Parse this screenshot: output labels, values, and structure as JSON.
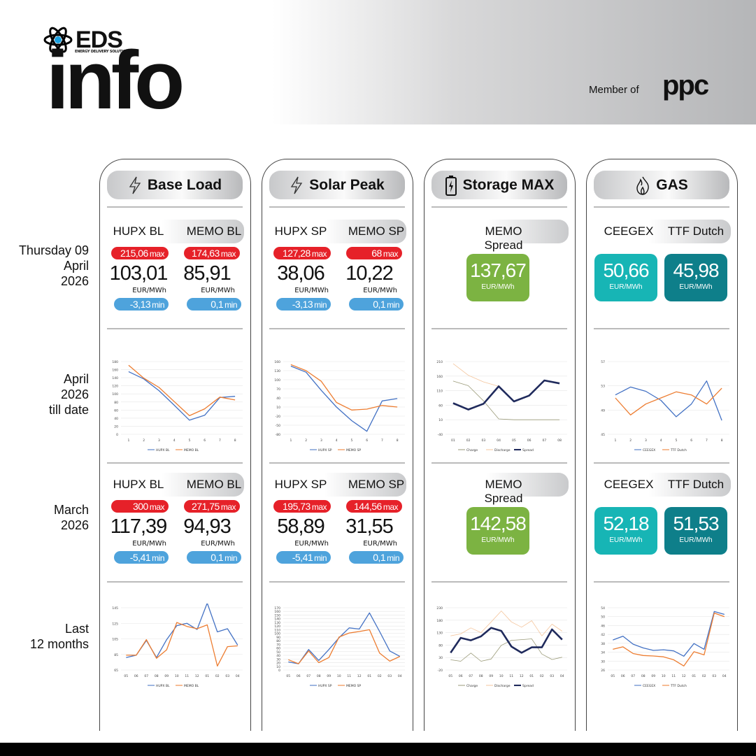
{
  "header": {
    "brand": "EDS",
    "brand_sub": "ENERGY DELIVERY SOLUTIONS",
    "title": "info",
    "member_of": "Member of",
    "parent_brand": "ppc"
  },
  "row_labels": [
    "Thursday 09\nApril\n2026",
    "April\n2026\ntill date",
    "March\n2026",
    "Last\n12 months"
  ],
  "colors": {
    "red": "#e62129",
    "blue": "#4ea3dc",
    "green": "#7cb342",
    "teal": "#17b5b5",
    "dark_teal": "#0e7f8a",
    "hupx": "#4472c4",
    "memo": "#ed7d31",
    "spread": "#1f2a5c"
  },
  "cards": [
    {
      "title": "Base Load",
      "icon": "lightning-icon",
      "type": "pair",
      "blocks": [
        {
          "labels": [
            "HUPX BL",
            "MEMO BL"
          ],
          "max": [
            "215,06",
            "174,63"
          ],
          "values": [
            "103,01",
            "85,91"
          ],
          "unit": "EUR/MWh",
          "min": [
            "-3,13",
            "0,1"
          ]
        },
        {
          "labels": [
            "HUPX BL",
            "MEMO BL"
          ],
          "max": [
            "300",
            "271,75"
          ],
          "values": [
            "117,39",
            "94,93"
          ],
          "unit": "EUR/MWh",
          "min": [
            "-5,41",
            "0,1"
          ]
        }
      ],
      "max_label": "max",
      "min_label": "min"
    },
    {
      "title": "Solar Peak",
      "icon": "lightning-icon",
      "type": "pair",
      "blocks": [
        {
          "labels": [
            "HUPX SP",
            "MEMO SP"
          ],
          "max": [
            "127,28",
            "68"
          ],
          "values": [
            "38,06",
            "10,22"
          ],
          "unit": "EUR/MWh",
          "min": [
            "-3,13",
            "0,1"
          ]
        },
        {
          "labels": [
            "HUPX SP",
            "MEMO SP"
          ],
          "max": [
            "195,73",
            "144,56"
          ],
          "values": [
            "58,89",
            "31,55"
          ],
          "unit": "EUR/MWh",
          "min": [
            "-5,41",
            "0,1"
          ]
        }
      ],
      "max_label": "max",
      "min_label": "min"
    },
    {
      "title": "Storage MAX",
      "icon": "battery-icon",
      "type": "single",
      "blocks": [
        {
          "label": "MEMO Spread",
          "values": [
            "137,67"
          ],
          "unit": "EUR/MWh"
        },
        {
          "label": "MEMO Spread",
          "values": [
            "142,58"
          ],
          "unit": "EUR/MWh"
        }
      ]
    },
    {
      "title": "GAS",
      "icon": "flame-icon",
      "type": "gas",
      "blocks": [
        {
          "labels": [
            "CEEGEX",
            "TTF Dutch"
          ],
          "values": [
            "50,66",
            "45,98"
          ],
          "unit": "EUR/MWh"
        },
        {
          "labels": [
            "CEEGEX",
            "TTF Dutch"
          ],
          "values": [
            "52,18",
            "51,53"
          ],
          "unit": "EUR/MWh"
        }
      ]
    }
  ],
  "chart_data": [
    {
      "card": "Base Load",
      "period": "April 2026 till date",
      "type": "line",
      "categories": [
        "1",
        "2",
        "3",
        "4",
        "5",
        "6",
        "7",
        "8"
      ],
      "ylim": [
        0,
        180
      ],
      "yticks": [
        0,
        20,
        40,
        60,
        80,
        100,
        120,
        140,
        160,
        180
      ],
      "legend": "bottom",
      "series": [
        {
          "name": "HUPX BL",
          "color": "#4472c4",
          "width": 1.3,
          "values": [
            155,
            137,
            108,
            72,
            35,
            47,
            91,
            94
          ]
        },
        {
          "name": "MEMO BL",
          "color": "#ed7d31",
          "width": 1.3,
          "values": [
            171,
            139,
            116,
            81,
            46,
            63,
            92,
            85
          ]
        }
      ]
    },
    {
      "card": "Solar Peak",
      "period": "April 2026 till date",
      "type": "line",
      "categories": [
        "1",
        "2",
        "3",
        "4",
        "5",
        "6",
        "7",
        "8"
      ],
      "ylim": [
        -80,
        160
      ],
      "yticks": [
        -80,
        -50,
        -20,
        10,
        40,
        70,
        100,
        130,
        160
      ],
      "legend": "bottom",
      "series": [
        {
          "name": "HUPX SP",
          "color": "#4472c4",
          "width": 1.3,
          "values": [
            145,
            125,
            65,
            10,
            -35,
            -70,
            30,
            38
          ]
        },
        {
          "name": "MEMO SP",
          "color": "#ed7d31",
          "width": 1.3,
          "values": [
            150,
            130,
            95,
            25,
            0,
            3,
            15,
            10
          ]
        }
      ]
    },
    {
      "card": "Storage MAX",
      "period": "April 2026 till date",
      "type": "line",
      "categories": [
        "01",
        "02",
        "03",
        "04",
        "05",
        "06",
        "07",
        "08"
      ],
      "ylim": [
        -40,
        210
      ],
      "yticks": [
        -40,
        10,
        60,
        110,
        160,
        210
      ],
      "legend": "bottom",
      "series": [
        {
          "name": "Charge",
          "color": "#9a9a78",
          "width": 0.8,
          "values": [
            143,
            127,
            75,
            13,
            10,
            10,
            10,
            10
          ]
        },
        {
          "name": "Discharge",
          "color": "#f4c59c",
          "width": 0.8,
          "values": [
            203,
            163,
            140,
            125,
            null,
            null,
            null,
            null
          ]
        },
        {
          "name": "Spread",
          "color": "#1f2a5c",
          "width": 2.6,
          "values": [
            67,
            45,
            65,
            125,
            73,
            93,
            145,
            135
          ]
        }
      ]
    },
    {
      "card": "GAS",
      "period": "April 2026 till date",
      "type": "line",
      "categories": [
        "1",
        "2",
        "3",
        "4",
        "5",
        "6",
        "7",
        "8"
      ],
      "ylim": [
        45,
        57
      ],
      "yticks": [
        45,
        49,
        53,
        57
      ],
      "legend": "bottom",
      "series": [
        {
          "name": "CEEGEX",
          "color": "#4472c4",
          "width": 1.3,
          "values": [
            51.5,
            52.8,
            52.1,
            50.6,
            47.9,
            50.0,
            53.8,
            47.3
          ]
        },
        {
          "name": "TTF Dutch",
          "color": "#ed7d31",
          "width": 1.3,
          "values": [
            51.0,
            48.2,
            50.0,
            51.0,
            52.0,
            51.5,
            50.0,
            52.6
          ]
        }
      ]
    },
    {
      "card": "Base Load",
      "period": "Last 12 months",
      "type": "line",
      "categories": [
        "05",
        "06",
        "07",
        "08",
        "09",
        "10",
        "11",
        "12",
        "01",
        "02",
        "03",
        "04"
      ],
      "ylim": [
        65,
        145
      ],
      "yticks": [
        65,
        85,
        105,
        125,
        145
      ],
      "legend": "bottom",
      "series": [
        {
          "name": "HUPX BL",
          "color": "#4472c4",
          "width": 1.3,
          "values": [
            81,
            84,
            103,
            81,
            104,
            122,
            125,
            117,
            151,
            114,
            118,
            97
          ]
        },
        {
          "name": "MEMO BL",
          "color": "#ed7d31",
          "width": 1.3,
          "values": [
            84,
            84,
            104,
            80,
            91,
            126,
            121,
            118,
            123,
            70,
            95,
            96
          ]
        }
      ]
    },
    {
      "card": "Solar Peak",
      "period": "Last 12 months",
      "type": "line",
      "categories": [
        "05",
        "06",
        "07",
        "08",
        "09",
        "10",
        "11",
        "12",
        "01",
        "02",
        "03",
        "04"
      ],
      "ylim": [
        0,
        170
      ],
      "yticks": [
        0,
        10,
        20,
        30,
        40,
        50,
        60,
        70,
        80,
        90,
        100,
        110,
        120,
        130,
        140,
        150,
        160,
        170
      ],
      "legend": "bottom",
      "series": [
        {
          "name": "HUPX SP",
          "color": "#4472c4",
          "width": 1.3,
          "values": [
            22,
            17,
            56,
            26,
            56,
            88,
            115,
            112,
            156,
            105,
            52,
            37
          ]
        },
        {
          "name": "MEMO SP",
          "color": "#ed7d31",
          "width": 1.3,
          "values": [
            28,
            17,
            52,
            20,
            34,
            90,
            101,
            105,
            110,
            46,
            24,
            37
          ]
        }
      ]
    },
    {
      "card": "Storage MAX",
      "period": "Last 12 months",
      "type": "line",
      "categories": [
        "05",
        "06",
        "07",
        "08",
        "09",
        "10",
        "11",
        "12",
        "01",
        "02",
        "03",
        "04"
      ],
      "ylim": [
        -20,
        230
      ],
      "yticks": [
        -20,
        30,
        80,
        130,
        180,
        230
      ],
      "legend": "bottom",
      "series": [
        {
          "name": "Charge",
          "color": "#9a9a78",
          "width": 0.8,
          "values": [
            21,
            15,
            48,
            15,
            24,
            79,
            99,
            102,
            105,
            44,
            22,
            31
          ]
        },
        {
          "name": "Discharge",
          "color": "#f4c59c",
          "width": 0.8,
          "values": [
            117,
            125,
            149,
            130,
            173,
            217,
            173,
            152,
            178,
            117,
            164,
            136
          ]
        },
        {
          "name": "Spread",
          "color": "#1f2a5c",
          "width": 2.6,
          "values": [
            49,
            109,
            99,
            115,
            149,
            137,
            74,
            49,
            71,
            71,
            143,
            102
          ]
        }
      ]
    },
    {
      "card": "GAS",
      "period": "Last 12 months",
      "type": "line",
      "categories": [
        "05",
        "06",
        "07",
        "08",
        "09",
        "10",
        "11",
        "12",
        "01",
        "02",
        "03",
        "04"
      ],
      "ylim": [
        26,
        54
      ],
      "yticks": [
        26,
        30,
        34,
        38,
        42,
        46,
        50,
        54
      ],
      "legend": "bottom",
      "series": [
        {
          "name": "CEEGEX",
          "color": "#4472c4",
          "width": 1.3,
          "values": [
            39.5,
            41.2,
            37.6,
            35.9,
            34.8,
            35.1,
            34.6,
            32.2,
            37.9,
            35.3,
            52.3,
            51.0
          ]
        },
        {
          "name": "TTF Dutch",
          "color": "#ed7d31",
          "width": 1.3,
          "values": [
            35.3,
            36.4,
            33.4,
            32.5,
            32.3,
            31.9,
            30.6,
            27.8,
            34.2,
            32.8,
            51.6,
            50.0
          ]
        }
      ]
    }
  ]
}
